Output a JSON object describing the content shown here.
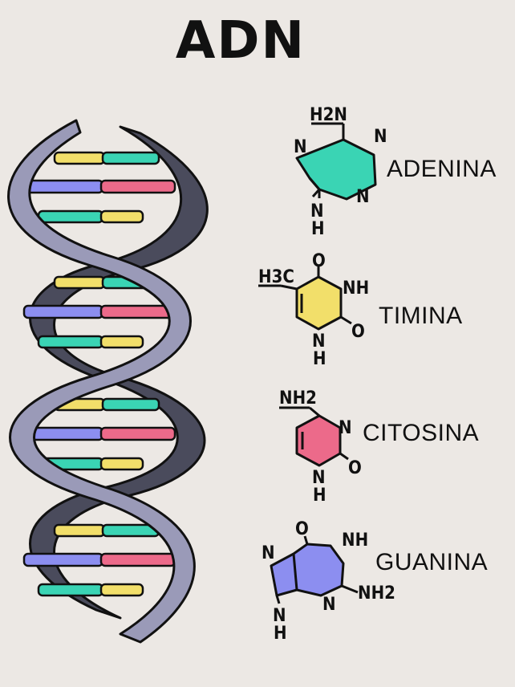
{
  "title": "ADN",
  "colors": {
    "background": "#ece8e4",
    "strand": "#9a9ab8",
    "strand_dark": "#4a4b5c",
    "adenina": "#3ad4b4",
    "timina": "#f2df6a",
    "citosina": "#ec6a8a",
    "guanina": "#8c8ef0",
    "outline": "#111111"
  },
  "bases": {
    "adenina": {
      "name": "ADENINA",
      "atoms": {
        "h2n": "H2N",
        "n_top_left": "N",
        "n_top_right": "N",
        "n_right": "N",
        "n_bottom": "N",
        "h_bottom": "H"
      }
    },
    "timina": {
      "name": "TIMINA",
      "atoms": {
        "h3c": "H3C",
        "o_top": "O",
        "nh": "NH",
        "o_right": "O",
        "n_bottom": "N",
        "h_bottom": "H"
      }
    },
    "citosina": {
      "name": "CITOSINA",
      "atoms": {
        "nh2": "NH2",
        "n_right": "N",
        "o_right": "O",
        "n_bottom": "N",
        "h_bottom": "H"
      }
    },
    "guanina": {
      "name": "GUANINA",
      "atoms": {
        "o_top": "O",
        "nh": "NH",
        "n_left": "N",
        "nh2": "NH2",
        "n_bottom_mid": "N",
        "n_bottom": "N",
        "h_bottom": "H"
      }
    }
  }
}
